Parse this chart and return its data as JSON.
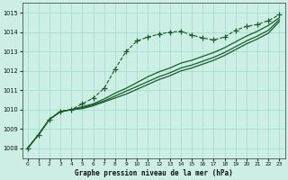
{
  "background_color": "#cceee4",
  "grid_color": "#99ddcc",
  "line_color": "#1a5c2a",
  "xlim": [
    -0.5,
    23.5
  ],
  "ylim": [
    1007.5,
    1015.5
  ],
  "yticks": [
    1008,
    1009,
    1010,
    1011,
    1012,
    1013,
    1014,
    1015
  ],
  "xticks": [
    0,
    1,
    2,
    3,
    4,
    5,
    6,
    7,
    8,
    9,
    10,
    11,
    12,
    13,
    14,
    15,
    16,
    17,
    18,
    19,
    20,
    21,
    22,
    23
  ],
  "xlabel": "Graphe pression niveau de la mer (hPa)",
  "line_marked": [
    1008.0,
    1008.7,
    1009.5,
    1009.9,
    1010.0,
    1010.3,
    1010.6,
    1011.1,
    1012.1,
    1013.0,
    1013.55,
    1013.75,
    1013.9,
    1014.0,
    1014.05,
    1013.85,
    1013.7,
    1013.6,
    1013.75,
    1014.1,
    1014.3,
    1014.4,
    1014.6,
    1014.9
  ],
  "line_a": [
    1008.0,
    1008.7,
    1009.5,
    1009.9,
    1010.0,
    1010.15,
    1010.3,
    1010.55,
    1010.85,
    1011.1,
    1011.4,
    1011.7,
    1011.95,
    1012.15,
    1012.4,
    1012.55,
    1012.75,
    1012.95,
    1013.2,
    1013.5,
    1013.8,
    1014.05,
    1014.35,
    1014.75
  ],
  "line_b": [
    1008.0,
    1008.7,
    1009.5,
    1009.9,
    1010.0,
    1010.1,
    1010.25,
    1010.45,
    1010.7,
    1010.95,
    1011.2,
    1011.45,
    1011.7,
    1011.9,
    1012.15,
    1012.3,
    1012.5,
    1012.7,
    1012.95,
    1013.25,
    1013.55,
    1013.8,
    1014.1,
    1014.65
  ],
  "line_c": [
    1008.0,
    1008.7,
    1009.5,
    1009.9,
    1010.0,
    1010.05,
    1010.2,
    1010.4,
    1010.6,
    1010.8,
    1011.05,
    1011.3,
    1011.55,
    1011.75,
    1012.0,
    1012.15,
    1012.35,
    1012.55,
    1012.8,
    1013.1,
    1013.4,
    1013.65,
    1013.95,
    1014.55
  ]
}
